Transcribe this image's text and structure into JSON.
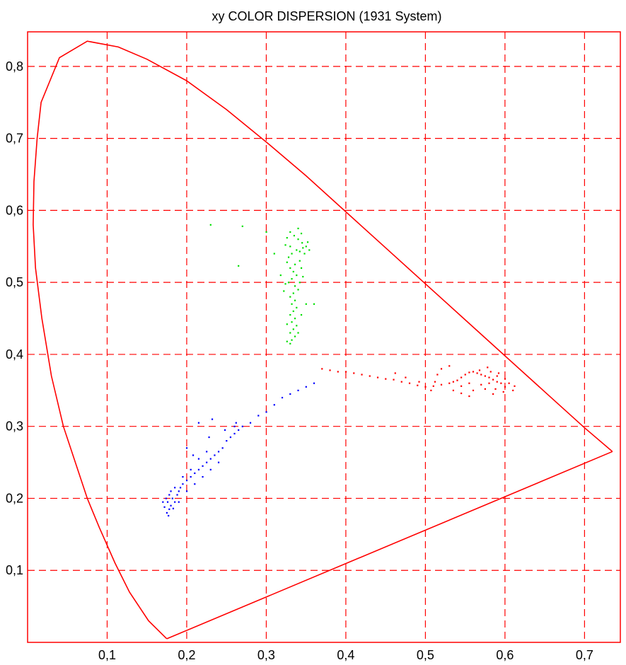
{
  "chart_data": {
    "type": "scatter",
    "title": "xy COLOR DISPERSION (1931 System)",
    "xlabel": "",
    "ylabel": "",
    "xlim": [
      0,
      0.745
    ],
    "ylim": [
      0,
      0.848
    ],
    "x_ticks": [
      "0,1",
      "0,2",
      "0,3",
      "0,4",
      "0,5",
      "0,6",
      "0,7"
    ],
    "x_tick_values": [
      0.1,
      0.2,
      0.3,
      0.4,
      0.5,
      0.6,
      0.7
    ],
    "y_ticks": [
      "0,1",
      "0,2",
      "0,3",
      "0,4",
      "0,5",
      "0,6",
      "0,7",
      "0,8"
    ],
    "y_tick_values": [
      0.1,
      0.2,
      0.3,
      0.4,
      0.5,
      0.6,
      0.7,
      0.8
    ],
    "grid": true,
    "grid_style": "dashed",
    "colors": {
      "axis": "#ff0000",
      "grid": "#ff0000",
      "locus": "#ff0000",
      "red_cluster": "#ff0000",
      "green_cluster": "#00e000",
      "blue_cluster": "#0000ff"
    },
    "locus": [
      [
        0.175,
        0.005
      ],
      [
        0.152,
        0.03
      ],
      [
        0.128,
        0.07
      ],
      [
        0.11,
        0.11
      ],
      [
        0.09,
        0.16
      ],
      [
        0.075,
        0.2
      ],
      [
        0.06,
        0.25
      ],
      [
        0.045,
        0.3
      ],
      [
        0.03,
        0.37
      ],
      [
        0.018,
        0.45
      ],
      [
        0.01,
        0.52
      ],
      [
        0.007,
        0.58
      ],
      [
        0.008,
        0.64
      ],
      [
        0.012,
        0.7
      ],
      [
        0.017,
        0.75
      ],
      [
        0.04,
        0.812
      ],
      [
        0.075,
        0.835
      ],
      [
        0.114,
        0.827
      ],
      [
        0.15,
        0.81
      ],
      [
        0.2,
        0.78
      ],
      [
        0.25,
        0.74
      ],
      [
        0.3,
        0.695
      ],
      [
        0.35,
        0.648
      ],
      [
        0.4,
        0.598
      ],
      [
        0.45,
        0.548
      ],
      [
        0.5,
        0.498
      ],
      [
        0.55,
        0.448
      ],
      [
        0.6,
        0.398
      ],
      [
        0.65,
        0.348
      ],
      [
        0.7,
        0.298
      ],
      [
        0.735,
        0.265
      ]
    ],
    "purple_line": [
      [
        0.735,
        0.265
      ],
      [
        0.175,
        0.005
      ]
    ],
    "series": [
      {
        "color": "red",
        "points": [
          [
            0.6,
            0.355
          ],
          [
            0.595,
            0.36
          ],
          [
            0.59,
            0.362
          ],
          [
            0.585,
            0.365
          ],
          [
            0.58,
            0.368
          ],
          [
            0.575,
            0.37
          ],
          [
            0.57,
            0.372
          ],
          [
            0.565,
            0.374
          ],
          [
            0.56,
            0.376
          ],
          [
            0.555,
            0.375
          ],
          [
            0.55,
            0.372
          ],
          [
            0.545,
            0.368
          ],
          [
            0.54,
            0.364
          ],
          [
            0.535,
            0.362
          ],
          [
            0.53,
            0.36
          ],
          [
            0.52,
            0.358
          ],
          [
            0.51,
            0.356
          ],
          [
            0.5,
            0.355
          ],
          [
            0.49,
            0.357
          ],
          [
            0.48,
            0.36
          ],
          [
            0.47,
            0.362
          ],
          [
            0.46,
            0.365
          ],
          [
            0.45,
            0.366
          ],
          [
            0.44,
            0.368
          ],
          [
            0.43,
            0.37
          ],
          [
            0.42,
            0.372
          ],
          [
            0.41,
            0.374
          ],
          [
            0.4,
            0.376
          ],
          [
            0.39,
            0.376
          ],
          [
            0.38,
            0.378
          ],
          [
            0.37,
            0.38
          ],
          [
            0.475,
            0.368
          ],
          [
            0.512,
            0.362
          ],
          [
            0.535,
            0.35
          ],
          [
            0.545,
            0.346
          ],
          [
            0.555,
            0.342
          ],
          [
            0.56,
            0.35
          ],
          [
            0.57,
            0.358
          ],
          [
            0.59,
            0.37
          ],
          [
            0.605,
            0.36
          ],
          [
            0.612,
            0.356
          ],
          [
            0.598,
            0.348
          ],
          [
            0.588,
            0.352
          ],
          [
            0.578,
            0.382
          ],
          [
            0.568,
            0.378
          ],
          [
            0.582,
            0.376
          ],
          [
            0.592,
            0.374
          ],
          [
            0.492,
            0.362
          ],
          [
            0.462,
            0.374
          ],
          [
            0.52,
            0.38
          ],
          [
            0.53,
            0.384
          ],
          [
            0.515,
            0.372
          ],
          [
            0.58,
            0.36
          ],
          [
            0.575,
            0.352
          ],
          [
            0.6,
            0.366
          ],
          [
            0.61,
            0.35
          ],
          [
            0.585,
            0.345
          ],
          [
            0.555,
            0.36
          ],
          [
            0.545,
            0.356
          ],
          [
            0.507,
            0.35
          ]
        ]
      },
      {
        "color": "green",
        "points": [
          [
            0.33,
            0.57
          ],
          [
            0.335,
            0.565
          ],
          [
            0.34,
            0.56
          ],
          [
            0.345,
            0.555
          ],
          [
            0.35,
            0.55
          ],
          [
            0.338,
            0.545
          ],
          [
            0.332,
            0.54
          ],
          [
            0.328,
            0.535
          ],
          [
            0.342,
            0.53
          ],
          [
            0.336,
            0.525
          ],
          [
            0.33,
            0.52
          ],
          [
            0.334,
            0.515
          ],
          [
            0.338,
            0.51
          ],
          [
            0.332,
            0.505
          ],
          [
            0.328,
            0.5
          ],
          [
            0.336,
            0.495
          ],
          [
            0.34,
            0.49
          ],
          [
            0.334,
            0.485
          ],
          [
            0.33,
            0.48
          ],
          [
            0.336,
            0.475
          ],
          [
            0.332,
            0.47
          ],
          [
            0.338,
            0.465
          ],
          [
            0.334,
            0.46
          ],
          [
            0.33,
            0.455
          ],
          [
            0.336,
            0.45
          ],
          [
            0.332,
            0.445
          ],
          [
            0.338,
            0.44
          ],
          [
            0.334,
            0.435
          ],
          [
            0.33,
            0.43
          ],
          [
            0.336,
            0.425
          ],
          [
            0.332,
            0.42
          ],
          [
            0.346,
            0.548
          ],
          [
            0.352,
            0.556
          ],
          [
            0.354,
            0.545
          ],
          [
            0.326,
            0.562
          ],
          [
            0.324,
            0.552
          ],
          [
            0.344,
            0.568
          ],
          [
            0.348,
            0.54
          ],
          [
            0.34,
            0.575
          ],
          [
            0.33,
            0.55
          ],
          [
            0.342,
            0.543
          ],
          [
            0.326,
            0.528
          ],
          [
            0.344,
            0.52
          ],
          [
            0.346,
            0.508
          ],
          [
            0.324,
            0.498
          ],
          [
            0.342,
            0.5
          ],
          [
            0.318,
            0.51
          ],
          [
            0.35,
            0.47
          ],
          [
            0.36,
            0.47
          ],
          [
            0.322,
            0.488
          ],
          [
            0.344,
            0.455
          ],
          [
            0.326,
            0.442
          ],
          [
            0.34,
            0.43
          ],
          [
            0.326,
            0.418
          ],
          [
            0.33,
            0.415
          ],
          [
            0.23,
            0.58
          ],
          [
            0.27,
            0.578
          ],
          [
            0.265,
            0.523
          ],
          [
            0.3,
            0.57
          ],
          [
            0.31,
            0.54
          ]
        ]
      },
      {
        "color": "blue",
        "points": [
          [
            0.175,
            0.18
          ],
          [
            0.178,
            0.185
          ],
          [
            0.18,
            0.19
          ],
          [
            0.176,
            0.195
          ],
          [
            0.174,
            0.2
          ],
          [
            0.178,
            0.205
          ],
          [
            0.182,
            0.2
          ],
          [
            0.185,
            0.195
          ],
          [
            0.188,
            0.205
          ],
          [
            0.19,
            0.21
          ],
          [
            0.192,
            0.215
          ],
          [
            0.195,
            0.22
          ],
          [
            0.2,
            0.225
          ],
          [
            0.205,
            0.23
          ],
          [
            0.21,
            0.235
          ],
          [
            0.215,
            0.24
          ],
          [
            0.22,
            0.245
          ],
          [
            0.225,
            0.25
          ],
          [
            0.23,
            0.255
          ],
          [
            0.235,
            0.26
          ],
          [
            0.24,
            0.265
          ],
          [
            0.245,
            0.27
          ],
          [
            0.25,
            0.28
          ],
          [
            0.255,
            0.285
          ],
          [
            0.26,
            0.29
          ],
          [
            0.265,
            0.295
          ],
          [
            0.27,
            0.3
          ],
          [
            0.28,
            0.305
          ],
          [
            0.29,
            0.315
          ],
          [
            0.3,
            0.32
          ],
          [
            0.31,
            0.33
          ],
          [
            0.32,
            0.34
          ],
          [
            0.33,
            0.345
          ],
          [
            0.34,
            0.35
          ],
          [
            0.35,
            0.355
          ],
          [
            0.36,
            0.36
          ],
          [
            0.185,
            0.215
          ],
          [
            0.195,
            0.23
          ],
          [
            0.205,
            0.24
          ],
          [
            0.215,
            0.255
          ],
          [
            0.225,
            0.265
          ],
          [
            0.2,
            0.21
          ],
          [
            0.21,
            0.22
          ],
          [
            0.22,
            0.23
          ],
          [
            0.23,
            0.24
          ],
          [
            0.24,
            0.25
          ],
          [
            0.19,
            0.195
          ],
          [
            0.18,
            0.21
          ],
          [
            0.17,
            0.195
          ],
          [
            0.172,
            0.188
          ],
          [
            0.177,
            0.176
          ],
          [
            0.183,
            0.186
          ],
          [
            0.208,
            0.26
          ],
          [
            0.228,
            0.285
          ],
          [
            0.26,
            0.3
          ],
          [
            0.2,
            0.27
          ],
          [
            0.215,
            0.305
          ],
          [
            0.232,
            0.31
          ],
          [
            0.248,
            0.295
          ],
          [
            0.262,
            0.305
          ]
        ]
      }
    ]
  }
}
